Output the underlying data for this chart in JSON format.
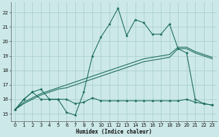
{
  "xlabel": "Humidex (Indice chaleur)",
  "background_color": "#cce8e8",
  "grid_color": "#aacfcf",
  "line_color": "#1a6b5a",
  "x_values": [
    0,
    1,
    2,
    3,
    4,
    5,
    6,
    7,
    8,
    9,
    10,
    11,
    12,
    13,
    14,
    15,
    16,
    17,
    18,
    19,
    20,
    21,
    22,
    23
  ],
  "line_main_y": [
    15.3,
    16.0,
    16.5,
    16.7,
    16.0,
    16.0,
    15.1,
    14.9,
    16.5,
    19.0,
    20.3,
    21.2,
    22.3,
    20.4,
    21.5,
    21.3,
    20.5,
    20.5,
    21.2,
    19.5,
    19.2,
    16.0,
    15.7,
    15.6
  ],
  "line_flat_y": [
    15.3,
    16.0,
    16.5,
    16.0,
    16.0,
    16.0,
    16.0,
    15.7,
    15.8,
    16.1,
    15.9,
    15.9,
    15.9,
    15.9,
    15.9,
    15.9,
    15.9,
    15.9,
    15.9,
    15.9,
    16.0,
    15.8,
    15.7,
    15.6
  ],
  "line_trend1_y": [
    15.3,
    15.7,
    16.0,
    16.3,
    16.5,
    16.7,
    16.8,
    17.0,
    17.2,
    17.4,
    17.6,
    17.8,
    18.0,
    18.2,
    18.4,
    18.6,
    18.7,
    18.8,
    18.9,
    19.5,
    19.5,
    19.2,
    19.0,
    18.8
  ],
  "line_trend2_y": [
    15.3,
    15.8,
    16.1,
    16.4,
    16.6,
    16.8,
    17.0,
    17.2,
    17.4,
    17.6,
    17.8,
    18.0,
    18.2,
    18.4,
    18.6,
    18.8,
    18.9,
    19.0,
    19.1,
    19.6,
    19.6,
    19.3,
    19.1,
    18.9
  ],
  "xlim": [
    -0.5,
    23.5
  ],
  "ylim": [
    14.5,
    22.7
  ],
  "yticks": [
    15,
    16,
    17,
    18,
    19,
    20,
    21,
    22
  ],
  "xticks": [
    0,
    1,
    2,
    3,
    4,
    5,
    6,
    7,
    8,
    9,
    10,
    11,
    12,
    13,
    14,
    15,
    16,
    17,
    18,
    19,
    20,
    21,
    22,
    23
  ]
}
